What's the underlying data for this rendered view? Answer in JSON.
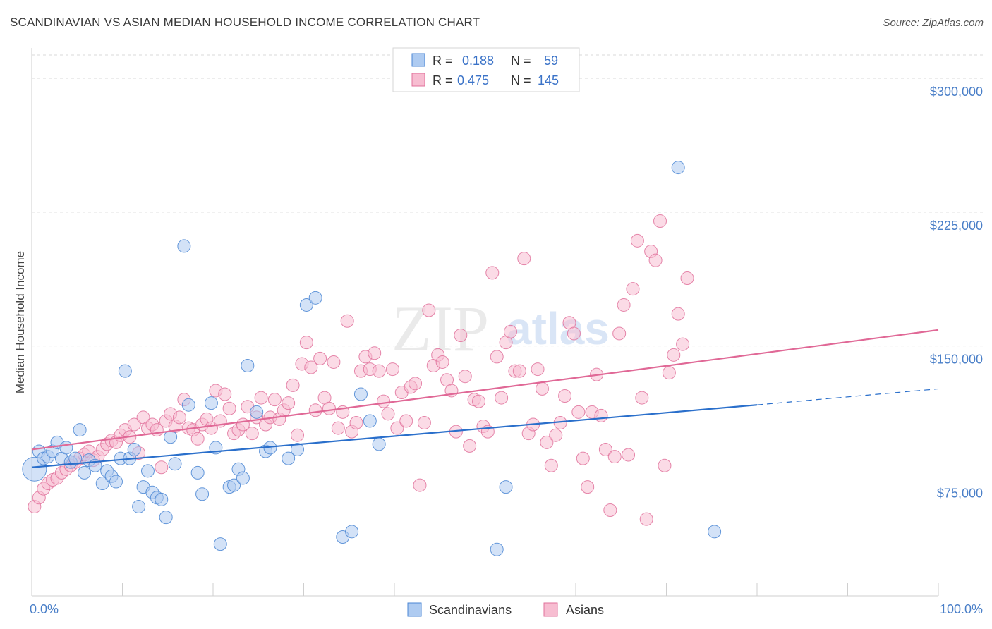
{
  "title": "SCANDINAVIAN VS ASIAN MEDIAN HOUSEHOLD INCOME CORRELATION CHART",
  "source": "Source: ZipAtlas.com",
  "watermark": {
    "zip": "ZIP",
    "atlas": "atlas"
  },
  "colors": {
    "blue": "#4a86d4",
    "blue_fill": "#aecbf1",
    "blue_line": "#2a6fcb",
    "pink": "#e0719b",
    "pink_fill": "#f7bdd1",
    "pink_line": "#e06896",
    "tick_text": "#4a7fc8",
    "grid": "#d9d9d9"
  },
  "legend_top": [
    {
      "series": "blue",
      "r_label": "R =",
      "r_value": "0.188",
      "n_label": "N =",
      "n_value": "59"
    },
    {
      "series": "pink",
      "r_label": "R =",
      "r_value": "0.475",
      "n_label": "N =",
      "n_value": "145"
    }
  ],
  "legend_bottom": [
    {
      "series": "blue",
      "label": "Scandinavians"
    },
    {
      "series": "pink",
      "label": "Asians"
    }
  ],
  "chart_data": {
    "type": "scatter",
    "title": "SCANDINAVIAN VS ASIAN MEDIAN HOUSEHOLD INCOME CORRELATION CHART",
    "xlabel": "",
    "ylabel": "Median Household Income",
    "xlim": [
      0,
      100
    ],
    "ylim": [
      10000,
      317000
    ],
    "x_tick_labels": [
      "0.0%",
      "100.0%"
    ],
    "y_ticks": [
      {
        "value": 75000,
        "label": "$75,000"
      },
      {
        "value": 150000,
        "label": "$150,000"
      },
      {
        "value": 225000,
        "label": "$225,000"
      },
      {
        "value": 300000,
        "label": "$300,000"
      }
    ],
    "grid": "horizontal-dashed",
    "legend_position": "top-center",
    "series": [
      {
        "name": "Scandinavians",
        "color": "#4a86d4",
        "r": 0.188,
        "n": 59,
        "trend": {
          "x0": 0,
          "y0": 82000,
          "x1": 80,
          "y1": 117000,
          "dash_to_x": 100,
          "dash_to_y": 126000
        },
        "points": [
          [
            0.3,
            81000,
            1
          ],
          [
            0.8,
            91000,
            0
          ],
          [
            1.3,
            87000,
            0
          ],
          [
            1.8,
            88000,
            0
          ],
          [
            2.3,
            91000,
            0
          ],
          [
            2.8,
            96000,
            0
          ],
          [
            3.3,
            87000,
            0
          ],
          [
            3.8,
            93000,
            0
          ],
          [
            4.3,
            85000,
            0
          ],
          [
            4.8,
            87000,
            0
          ],
          [
            5.3,
            103000,
            0
          ],
          [
            5.8,
            79000,
            0
          ],
          [
            6.3,
            86000,
            0
          ],
          [
            7.0,
            83000,
            0
          ],
          [
            7.8,
            73000,
            0
          ],
          [
            8.3,
            80000,
            0
          ],
          [
            8.8,
            77000,
            0
          ],
          [
            9.3,
            74000,
            0
          ],
          [
            9.8,
            87000,
            0
          ],
          [
            10.3,
            136000,
            0
          ],
          [
            10.8,
            87000,
            0
          ],
          [
            11.3,
            92000,
            0
          ],
          [
            11.8,
            60000,
            0
          ],
          [
            12.3,
            71000,
            0
          ],
          [
            12.8,
            80000,
            0
          ],
          [
            13.3,
            68000,
            0
          ],
          [
            13.8,
            65000,
            0
          ],
          [
            14.3,
            64000,
            0
          ],
          [
            14.8,
            54000,
            0
          ],
          [
            15.3,
            99000,
            0
          ],
          [
            15.8,
            84000,
            0
          ],
          [
            16.8,
            206000,
            0
          ],
          [
            17.3,
            117000,
            0
          ],
          [
            18.3,
            79000,
            0
          ],
          [
            18.8,
            67000,
            0
          ],
          [
            19.8,
            118000,
            0
          ],
          [
            20.3,
            93000,
            0
          ],
          [
            20.8,
            39000,
            0
          ],
          [
            21.8,
            71000,
            0
          ],
          [
            22.3,
            72000,
            0
          ],
          [
            22.8,
            81000,
            0
          ],
          [
            23.3,
            76000,
            0
          ],
          [
            23.8,
            139000,
            0
          ],
          [
            24.8,
            113000,
            0
          ],
          [
            25.8,
            91000,
            0
          ],
          [
            26.3,
            93000,
            0
          ],
          [
            28.3,
            87000,
            0
          ],
          [
            29.3,
            92000,
            0
          ],
          [
            30.3,
            173000,
            0
          ],
          [
            31.3,
            177000,
            0
          ],
          [
            34.3,
            43000,
            0
          ],
          [
            35.3,
            46000,
            0
          ],
          [
            36.3,
            123000,
            0
          ],
          [
            37.3,
            108000,
            0
          ],
          [
            38.3,
            95000,
            0
          ],
          [
            51.3,
            36000,
            0
          ],
          [
            52.3,
            71000,
            0
          ],
          [
            71.3,
            250000,
            0
          ],
          [
            75.3,
            46000,
            0
          ]
        ]
      },
      {
        "name": "Asians",
        "color": "#e0719b",
        "r": 0.475,
        "n": 145,
        "trend": {
          "x0": 0,
          "y0": 92000,
          "x1": 100,
          "y1": 159000
        },
        "points": [
          [
            0.3,
            60000,
            0
          ],
          [
            0.8,
            65000,
            0
          ],
          [
            1.3,
            70000,
            0
          ],
          [
            1.8,
            73000,
            0
          ],
          [
            2.3,
            75000,
            0
          ],
          [
            2.8,
            76000,
            0
          ],
          [
            3.3,
            79000,
            0
          ],
          [
            3.8,
            81000,
            0
          ],
          [
            4.3,
            83000,
            0
          ],
          [
            4.8,
            85000,
            0
          ],
          [
            5.3,
            87000,
            0
          ],
          [
            5.8,
            89000,
            0
          ],
          [
            6.3,
            91000,
            0
          ],
          [
            6.8,
            86000,
            0
          ],
          [
            7.3,
            88000,
            0
          ],
          [
            7.8,
            92000,
            0
          ],
          [
            8.3,
            95000,
            0
          ],
          [
            8.8,
            97000,
            0
          ],
          [
            9.3,
            96000,
            0
          ],
          [
            9.8,
            100000,
            0
          ],
          [
            10.3,
            103000,
            0
          ],
          [
            10.8,
            99000,
            0
          ],
          [
            11.3,
            106000,
            0
          ],
          [
            11.8,
            90000,
            0
          ],
          [
            12.3,
            110000,
            0
          ],
          [
            12.8,
            104000,
            0
          ],
          [
            13.3,
            106000,
            0
          ],
          [
            13.8,
            103000,
            0
          ],
          [
            14.3,
            82000,
            0
          ],
          [
            14.8,
            108000,
            0
          ],
          [
            15.3,
            112000,
            0
          ],
          [
            15.8,
            105000,
            0
          ],
          [
            16.3,
            110000,
            0
          ],
          [
            16.8,
            120000,
            0
          ],
          [
            17.3,
            104000,
            0
          ],
          [
            17.8,
            103000,
            0
          ],
          [
            18.3,
            98000,
            0
          ],
          [
            18.8,
            106000,
            0
          ],
          [
            19.3,
            109000,
            0
          ],
          [
            19.8,
            104000,
            0
          ],
          [
            20.3,
            125000,
            0
          ],
          [
            20.8,
            108000,
            0
          ],
          [
            21.3,
            123000,
            0
          ],
          [
            21.8,
            115000,
            0
          ],
          [
            22.3,
            101000,
            0
          ],
          [
            22.8,
            103000,
            0
          ],
          [
            23.3,
            106000,
            0
          ],
          [
            23.8,
            116000,
            0
          ],
          [
            24.3,
            101000,
            0
          ],
          [
            24.8,
            110000,
            0
          ],
          [
            25.3,
            121000,
            0
          ],
          [
            25.8,
            106000,
            0
          ],
          [
            26.3,
            110000,
            0
          ],
          [
            26.8,
            120000,
            0
          ],
          [
            27.3,
            109000,
            0
          ],
          [
            27.8,
            114000,
            0
          ],
          [
            28.3,
            118000,
            0
          ],
          [
            28.8,
            128000,
            0
          ],
          [
            29.3,
            100000,
            0
          ],
          [
            29.8,
            140000,
            0
          ],
          [
            30.3,
            152000,
            0
          ],
          [
            30.8,
            138000,
            0
          ],
          [
            31.3,
            114000,
            0
          ],
          [
            31.8,
            143000,
            0
          ],
          [
            32.3,
            121000,
            0
          ],
          [
            32.8,
            115000,
            0
          ],
          [
            33.3,
            141000,
            0
          ],
          [
            33.8,
            104000,
            0
          ],
          [
            34.3,
            113000,
            0
          ],
          [
            34.8,
            164000,
            0
          ],
          [
            35.3,
            102000,
            0
          ],
          [
            35.8,
            107000,
            0
          ],
          [
            36.3,
            136000,
            0
          ],
          [
            36.8,
            144000,
            0
          ],
          [
            37.3,
            137000,
            0
          ],
          [
            37.8,
            146000,
            0
          ],
          [
            38.3,
            136000,
            0
          ],
          [
            38.8,
            119000,
            0
          ],
          [
            39.3,
            112000,
            0
          ],
          [
            39.8,
            137000,
            0
          ],
          [
            40.3,
            104000,
            0
          ],
          [
            40.8,
            124000,
            0
          ],
          [
            41.3,
            108000,
            0
          ],
          [
            41.8,
            127000,
            0
          ],
          [
            42.3,
            129000,
            0
          ],
          [
            42.8,
            72000,
            0
          ],
          [
            43.3,
            107000,
            0
          ],
          [
            43.8,
            170000,
            0
          ],
          [
            44.3,
            139000,
            0
          ],
          [
            44.8,
            145000,
            0
          ],
          [
            45.3,
            141000,
            0
          ],
          [
            45.8,
            131000,
            0
          ],
          [
            46.3,
            125000,
            0
          ],
          [
            46.8,
            102000,
            0
          ],
          [
            47.3,
            156000,
            0
          ],
          [
            47.8,
            133000,
            0
          ],
          [
            48.3,
            94000,
            0
          ],
          [
            48.8,
            120000,
            0
          ],
          [
            49.3,
            119000,
            0
          ],
          [
            49.8,
            105000,
            0
          ],
          [
            50.3,
            102000,
            0
          ],
          [
            50.8,
            191000,
            0
          ],
          [
            51.3,
            144000,
            0
          ],
          [
            51.8,
            121000,
            0
          ],
          [
            52.3,
            152000,
            0
          ],
          [
            52.8,
            158000,
            0
          ],
          [
            53.3,
            136000,
            0
          ],
          [
            53.8,
            136000,
            0
          ],
          [
            54.3,
            199000,
            0
          ],
          [
            54.8,
            101000,
            0
          ],
          [
            55.3,
            106000,
            0
          ],
          [
            55.8,
            137000,
            0
          ],
          [
            56.3,
            126000,
            0
          ],
          [
            56.8,
            96000,
            0
          ],
          [
            57.3,
            83000,
            0
          ],
          [
            57.8,
            100000,
            0
          ],
          [
            58.3,
            107000,
            0
          ],
          [
            58.8,
            122000,
            0
          ],
          [
            59.3,
            163000,
            0
          ],
          [
            59.8,
            157000,
            0
          ],
          [
            60.3,
            113000,
            0
          ],
          [
            60.8,
            87000,
            0
          ],
          [
            61.3,
            71000,
            0
          ],
          [
            61.8,
            113000,
            0
          ],
          [
            62.3,
            134000,
            0
          ],
          [
            62.8,
            111000,
            0
          ],
          [
            63.3,
            92000,
            0
          ],
          [
            63.8,
            58000,
            0
          ],
          [
            64.3,
            88000,
            0
          ],
          [
            64.8,
            157000,
            0
          ],
          [
            65.3,
            173000,
            0
          ],
          [
            65.8,
            89000,
            0
          ],
          [
            66.3,
            182000,
            0
          ],
          [
            66.8,
            209000,
            0
          ],
          [
            67.3,
            121000,
            0
          ],
          [
            67.8,
            53000,
            0
          ],
          [
            68.3,
            203000,
            0
          ],
          [
            68.8,
            198000,
            0
          ],
          [
            69.3,
            220000,
            0
          ],
          [
            69.8,
            83000,
            0
          ],
          [
            70.3,
            135000,
            0
          ],
          [
            70.8,
            145000,
            0
          ],
          [
            71.3,
            168000,
            0
          ],
          [
            71.8,
            151000,
            0
          ],
          [
            72.3,
            188000,
            0
          ]
        ]
      }
    ]
  }
}
